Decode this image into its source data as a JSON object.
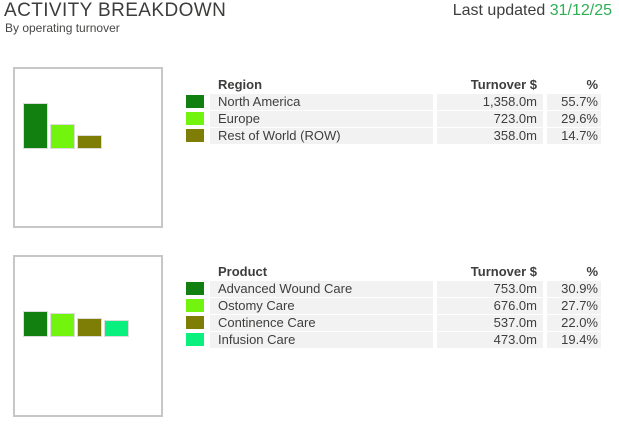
{
  "header": {
    "title": "ACTIVITY BREAKDOWN",
    "subtitle": "By operating turnover",
    "last_updated_label": "Last updated",
    "last_updated_date": "31/12/25",
    "date_color": "#2fae55"
  },
  "palette": {
    "dark_green": "#118011",
    "bright_green": "#72f40e",
    "olive": "#7e7d06",
    "spring_green": "#0af07f",
    "row_background": "#f2f2f2",
    "box_border": "#c7c7c7",
    "text": "#3d3d3c"
  },
  "sections": [
    {
      "id": "region",
      "table": {
        "headers": {
          "label": "Region",
          "turnover": "Turnover $",
          "percent": "%"
        },
        "rows": [
          {
            "label": "North America",
            "turnover": "1,358.0m",
            "percent": "55.7%",
            "swatch_color": "#118011"
          },
          {
            "label": "Europe",
            "turnover": "723.0m",
            "percent": "29.6%",
            "swatch_color": "#72f40e"
          },
          {
            "label": "Rest of World (ROW)",
            "turnover": "358.0m",
            "percent": "14.7%",
            "swatch_color": "#7e7d06"
          }
        ]
      }
    },
    {
      "id": "product",
      "table": {
        "headers": {
          "label": "Product",
          "turnover": "Turnover $",
          "percent": "%"
        },
        "rows": [
          {
            "label": "Advanced Wound Care",
            "turnover": "753.0m",
            "percent": "30.9%",
            "swatch_color": "#118011"
          },
          {
            "label": "Ostomy Care",
            "turnover": "676.0m",
            "percent": "27.7%",
            "swatch_color": "#72f40e"
          },
          {
            "label": "Continence Care",
            "turnover": "537.0m",
            "percent": "22.0%",
            "swatch_color": "#7e7d06"
          },
          {
            "label": "Infusion Care",
            "turnover": "473.0m",
            "percent": "19.4%",
            "swatch_color": "#0af07f"
          }
        ]
      }
    }
  ],
  "chart_data": [
    {
      "type": "bar",
      "title": "Region",
      "subtitle": "By operating turnover",
      "categories": [
        "North America",
        "Europe",
        "Rest of World (ROW)"
      ],
      "values": [
        1358.0,
        723.0,
        358.0
      ],
      "value_unit": "$m",
      "percents": [
        55.7,
        29.6,
        14.7
      ],
      "colors": [
        "#118011",
        "#72f40e",
        "#7e7d06"
      ],
      "xlabel": "",
      "ylabel": "",
      "axes": "none",
      "grid": false,
      "legend_position": "table-right"
    },
    {
      "type": "bar",
      "title": "Product",
      "subtitle": "By operating turnover",
      "categories": [
        "Advanced Wound Care",
        "Ostomy Care",
        "Continence Care",
        "Infusion Care"
      ],
      "values": [
        753.0,
        676.0,
        537.0,
        473.0
      ],
      "value_unit": "$m",
      "percents": [
        30.9,
        27.7,
        22.0,
        19.4
      ],
      "colors": [
        "#118011",
        "#72f40e",
        "#7e7d06",
        "#0af07f"
      ],
      "xlabel": "",
      "ylabel": "",
      "axes": "none",
      "grid": false,
      "legend_position": "table-right"
    }
  ]
}
